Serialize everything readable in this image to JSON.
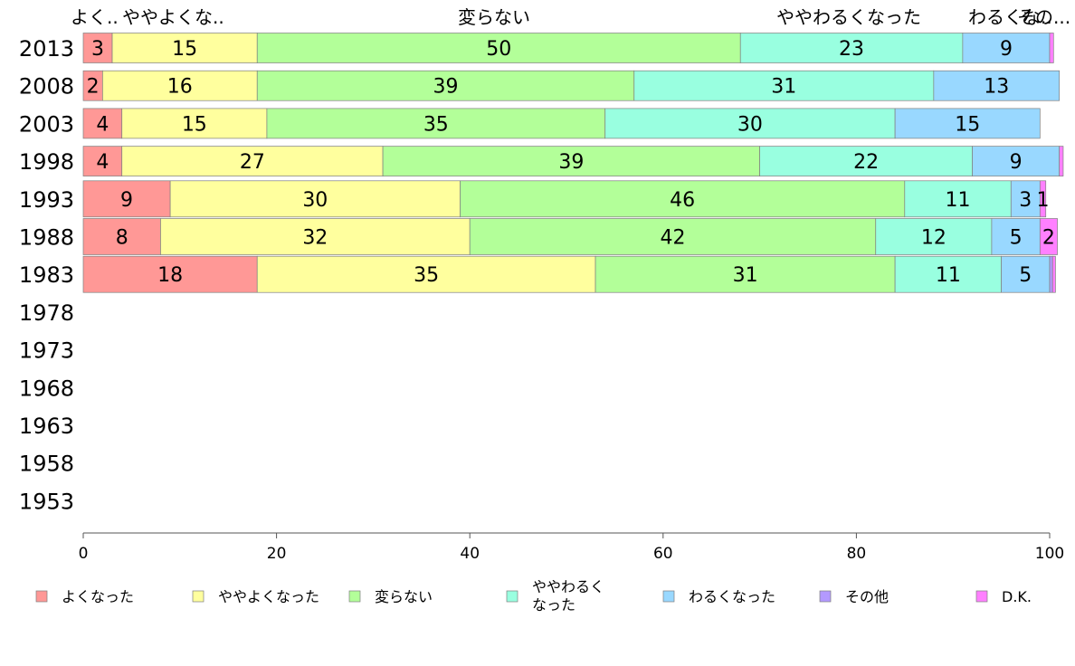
{
  "chart_data": {
    "type": "bar",
    "orientation": "horizontal",
    "stacked": true,
    "categories": [
      "2013",
      "2008",
      "2003",
      "1998",
      "1993",
      "1988",
      "1983",
      "1978",
      "1973",
      "1968",
      "1963",
      "1958",
      "1953"
    ],
    "top_labels": [
      "よく..",
      "ややよくな..",
      "変らない",
      "ややわるくなった",
      "わるくな..",
      "その..."
    ],
    "xlim": [
      0,
      100
    ],
    "xticks": [
      0,
      20,
      40,
      60,
      80,
      100
    ],
    "legend_position": "bottom",
    "series": [
      {
        "name": "よくなった",
        "color": "#ff9896",
        "values": [
          3,
          2,
          4,
          4,
          9,
          8,
          18,
          null,
          null,
          null,
          null,
          null,
          null
        ],
        "labels": [
          "3",
          "2",
          "4",
          "4",
          "9",
          "8",
          "18",
          "",
          "",
          "",
          "",
          "",
          ""
        ]
      },
      {
        "name": "ややよくなった",
        "color": "#ffff9e",
        "values": [
          15,
          16,
          15,
          27,
          30,
          32,
          35,
          null,
          null,
          null,
          null,
          null,
          null
        ],
        "labels": [
          "15",
          "16",
          "15",
          "27",
          "30",
          "32",
          "35",
          "",
          "",
          "",
          "",
          "",
          ""
        ]
      },
      {
        "name": "変らない",
        "color": "#b3ff99",
        "values": [
          50,
          39,
          35,
          39,
          46,
          42,
          31,
          null,
          null,
          null,
          null,
          null,
          null
        ],
        "labels": [
          "50",
          "39",
          "35",
          "39",
          "46",
          "42",
          "31",
          "",
          "",
          "",
          "",
          "",
          ""
        ]
      },
      {
        "name": "ややわるくなった",
        "legend_lines": [
          "ややわるく",
          "なった"
        ],
        "color": "#99ffe0",
        "values": [
          23,
          31,
          30,
          22,
          11,
          12,
          11,
          null,
          null,
          null,
          null,
          null,
          null
        ],
        "labels": [
          "23",
          "31",
          "30",
          "22",
          "11",
          "12",
          "11",
          "",
          "",
          "",
          "",
          "",
          ""
        ]
      },
      {
        "name": "わるくなった",
        "color": "#99d8ff",
        "values": [
          9,
          13,
          15,
          9,
          3,
          5,
          5,
          null,
          null,
          null,
          null,
          null,
          null
        ],
        "labels": [
          "9",
          "13",
          "15",
          "9",
          "3",
          "5",
          "5",
          "",
          "",
          "",
          "",
          "",
          ""
        ]
      },
      {
        "name": "その他",
        "color": "#b399ff",
        "values": [
          0,
          0,
          0,
          0,
          0,
          0,
          0.3,
          null,
          null,
          null,
          null,
          null,
          null
        ],
        "labels": [
          "",
          "",
          "",
          "",
          "",
          "",
          "",
          "",
          "",
          "",
          "",
          "",
          ""
        ]
      },
      {
        "name": "D.K.",
        "color": "#ff80ff",
        "values": [
          0.4,
          0,
          0,
          0.4,
          0.6,
          1.8,
          0.3,
          null,
          null,
          null,
          null,
          null,
          null
        ],
        "labels": [
          "",
          "",
          "",
          "",
          "1",
          "2",
          "",
          "",
          "",
          "",
          "",
          "",
          ""
        ]
      }
    ]
  }
}
